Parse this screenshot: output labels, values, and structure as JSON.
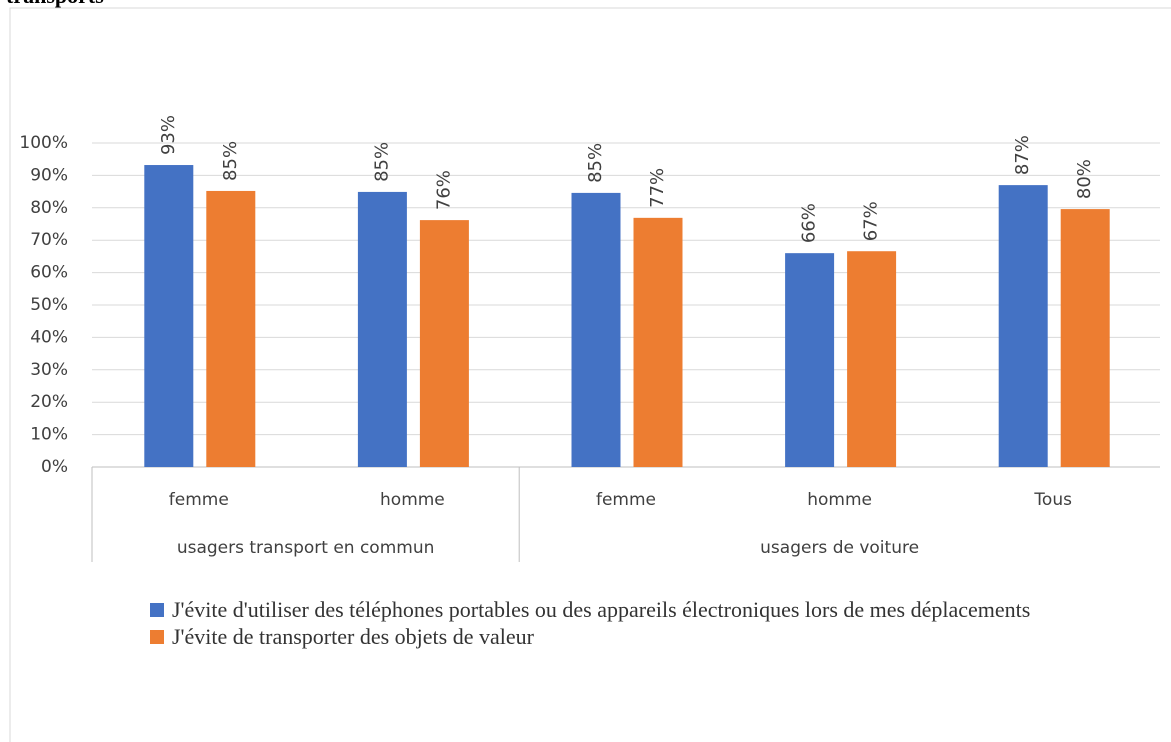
{
  "chart_data": {
    "type": "bar",
    "title": "transports",
    "groups": [
      {
        "label": "usagers transport en commun",
        "categories": [
          "femme",
          "homme"
        ]
      },
      {
        "label": "usagers de voiture",
        "categories": [
          "femme",
          "homme",
          "Tous"
        ]
      }
    ],
    "series": [
      {
        "name": "J'évite d'utiliser des téléphones portables ou des appareils électroniques lors de mes déplacements",
        "color": "#4472c4",
        "values": [
          93.2,
          84.9,
          84.6,
          66.0,
          87.0
        ],
        "value_labels": [
          "93%",
          "85%",
          "85%",
          "66%",
          "87%"
        ]
      },
      {
        "name": "J'évite de transporter des objets de valeur",
        "color": "#ed7d31",
        "values": [
          85.2,
          76.2,
          76.9,
          66.6,
          79.6
        ],
        "value_labels": [
          "85%",
          "76%",
          "77%",
          "67%",
          "80%"
        ]
      }
    ],
    "ylim": [
      0,
      100
    ],
    "yticks": [
      {
        "value": 0,
        "label": "0%"
      },
      {
        "value": 10,
        "label": "10%"
      },
      {
        "value": 20,
        "label": "20%"
      },
      {
        "value": 30,
        "label": "30%"
      },
      {
        "value": 40,
        "label": "40%"
      },
      {
        "value": 50,
        "label": "50%"
      },
      {
        "value": 60,
        "label": "60%"
      },
      {
        "value": 70,
        "label": "70%"
      },
      {
        "value": 80,
        "label": "80%"
      },
      {
        "value": 90,
        "label": "90%"
      },
      {
        "value": 100,
        "label": "100%"
      }
    ],
    "grid": true
  }
}
